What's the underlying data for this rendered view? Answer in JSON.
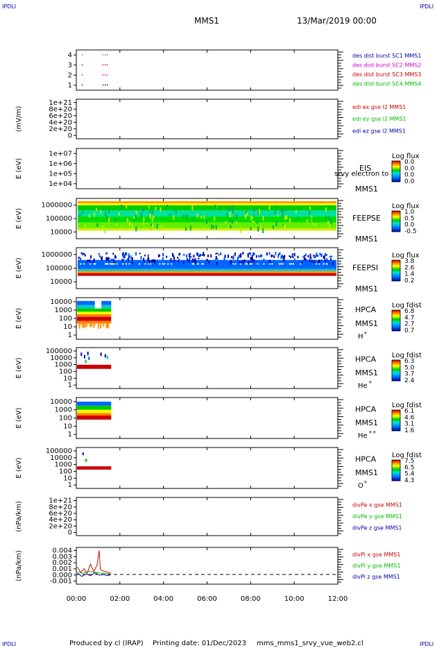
{
  "corner_marks": {
    "left": "IPDLI",
    "right": "IPDLI"
  },
  "header": {
    "mission": "MMS1",
    "date": "13/Mar/2019 00:00"
  },
  "footer": {
    "produced_by": "Produced by cl (IRAP)",
    "printing_date": "Printing date: 01/Dec/2023",
    "file": "mms_mms1_srvy_vue_web2.cl"
  },
  "time_axis": {
    "start_hours": 0,
    "end_hours": 12,
    "ticks": [
      "00:00",
      "02:00",
      "04:00",
      "06:00",
      "08:00",
      "10:00",
      "12:00"
    ]
  },
  "colors": {
    "mms1": "#0000aa",
    "mms2": "#cc00cc",
    "mms3": "#cc0000",
    "mms4": "#00bb00",
    "x": "#cc0000",
    "y": "#00bb00",
    "z": "#0000aa"
  },
  "chart_data": [
    {
      "type": "scatter",
      "id": "burst",
      "ylabel": "",
      "yticks": [
        "1",
        "2",
        "3",
        "4"
      ],
      "ylim": [
        0.5,
        4.5
      ],
      "legend": [
        {
          "label": "des dist burst SC1 MMS1",
          "color": "#0000aa"
        },
        {
          "label": "des dist burst SC2 MMS2",
          "color": "#cc00cc"
        },
        {
          "label": "des dist burst SC3 MMS3",
          "color": "#cc0000"
        },
        {
          "label": "des dist burst SC4 MMS4",
          "color": "#00bb00"
        }
      ],
      "series": [
        {
          "level": 1,
          "color": "#0000aa",
          "times": [
            0.25,
            1.2,
            1.3,
            1.4
          ]
        },
        {
          "level": 2,
          "color": "#cc00cc",
          "times": [
            0.25,
            1.2,
            1.3,
            1.4
          ]
        },
        {
          "level": 3,
          "color": "#cc0000",
          "times": [
            0.25,
            1.2,
            1.3,
            1.4
          ]
        },
        {
          "level": 4,
          "color": "#00bb00",
          "times": [
            0.25,
            1.2,
            1.3,
            1.4
          ]
        }
      ]
    },
    {
      "type": "line",
      "id": "edi",
      "ylabel": "(mV/m)",
      "yticks": [
        "0",
        "2e+20",
        "4e+20",
        "6e+20",
        "8e+20",
        "1e+21"
      ],
      "ylim": [
        0,
        1.05e+21
      ],
      "zero_line": true,
      "legend": [
        {
          "label": "edi ex gse l2 MMS1",
          "color": "#cc0000"
        },
        {
          "label": "edi ey gse l2 MMS1",
          "color": "#00bb00"
        },
        {
          "label": "edi ez gse l2 MMS1",
          "color": "#0000aa"
        }
      ]
    },
    {
      "type": "heatmap",
      "id": "eis",
      "ylabel": "E (eV)",
      "yticks": [
        "1e+04",
        "1e+05",
        "1e+06",
        "1e+07"
      ],
      "instrument": [
        "EIS",
        "MMS1"
      ],
      "overlap_text": "srvy electron to",
      "colorbar": {
        "title": "Log flux",
        "ticks": [
          "0.0",
          "0.0",
          "0.0",
          "0.0"
        ]
      }
    },
    {
      "type": "heatmap",
      "id": "feepse",
      "ylabel": "E (eV)",
      "yticks": [
        "10000",
        "100000",
        "1000000"
      ],
      "instrument": [
        "FEEPSE",
        "MMS1"
      ],
      "colorbar": {
        "title": "Log flux",
        "ticks": [
          "1.0",
          "0.5",
          "0.0",
          "-0.5"
        ]
      }
    },
    {
      "type": "heatmap",
      "id": "feepsi",
      "ylabel": "E (eV)",
      "yticks": [
        "10000",
        "100000",
        "1000000"
      ],
      "instrument": [
        "FEEPSI",
        "MMS1"
      ],
      "colorbar": {
        "title": "Log flux",
        "ticks": [
          "3.8",
          "2.6",
          "1.4",
          "0.2"
        ]
      }
    },
    {
      "type": "heatmap",
      "id": "hpca_h",
      "ylabel": "E (eV)",
      "yticks": [
        "1",
        "10",
        "100",
        "1000",
        "10000"
      ],
      "instrument": [
        "HPCA",
        "MMS1"
      ],
      "species": "H",
      "species_sup": "+",
      "colorbar": {
        "title": "Log fdist",
        "ticks": [
          "6.8",
          "4.7",
          "2.7",
          "0.7"
        ]
      }
    },
    {
      "type": "heatmap",
      "id": "hpca_he",
      "ylabel": "E (eV)",
      "yticks": [
        "1",
        "10",
        "100",
        "1000",
        "10000",
        "100000"
      ],
      "instrument": [
        "HPCA",
        "MMS1"
      ],
      "species": "He",
      "species_sup": "+",
      "colorbar": {
        "title": "Log fdist",
        "ticks": [
          "6.3",
          "5.0",
          "3.7",
          "2.4"
        ]
      }
    },
    {
      "type": "heatmap",
      "id": "hpca_hepp",
      "ylabel": "E (eV)",
      "yticks": [
        "1",
        "10",
        "100",
        "1000",
        "10000"
      ],
      "instrument": [
        "HPCA",
        "MMS1"
      ],
      "species": "He",
      "species_sup": "++",
      "colorbar": {
        "title": "Log fdist",
        "ticks": [
          "6.1",
          "4.6",
          "3.1",
          "1.6"
        ]
      }
    },
    {
      "type": "heatmap",
      "id": "hpca_o",
      "ylabel": "E (eV)",
      "yticks": [
        "1",
        "10",
        "100",
        "1000",
        "10000",
        "100000"
      ],
      "instrument": [
        "HPCA",
        "MMS1"
      ],
      "species": "O",
      "species_sup": "+",
      "colorbar": {
        "title": "Log fdist",
        "ticks": [
          "7.5",
          "6.5",
          "5.4",
          "4.3"
        ]
      }
    },
    {
      "type": "line",
      "id": "divpe",
      "ylabel": "(nPa/km)",
      "yticks": [
        "0",
        "2e+20",
        "4e+20",
        "6e+20",
        "8e+20",
        "1e+21"
      ],
      "ylim": [
        0,
        1.05e+21
      ],
      "zero_line": true,
      "legend": [
        {
          "label": "divPe x gse MMS1",
          "color": "#cc0000"
        },
        {
          "label": "divPe y gse MMS1",
          "color": "#00bb00"
        },
        {
          "label": "divPe z gse MMS1",
          "color": "#0000aa"
        }
      ]
    },
    {
      "type": "line",
      "id": "divpi",
      "ylabel": "(nPa/km)",
      "yticks": [
        "-0.001",
        "0.000",
        "0.001",
        "0.002",
        "0.003",
        "0.004"
      ],
      "ylim": [
        -0.0015,
        0.0042
      ],
      "zero_line": true,
      "legend": [
        {
          "label": "divPi x gse MMS1",
          "color": "#cc0000"
        },
        {
          "label": "divPi y gse MMS1",
          "color": "#00bb00"
        },
        {
          "label": "divPi z gse MMS1",
          "color": "#0000aa"
        }
      ],
      "series": [
        {
          "name": "x",
          "color": "#cc0000",
          "t": [
            0.05,
            0.2,
            0.35,
            0.5,
            0.65,
            0.8,
            0.95,
            1.05,
            1.1,
            1.2,
            1.35,
            1.5,
            1.58
          ],
          "v": [
            0.0012,
            0.0003,
            0.0009,
            0.0002,
            0.0016,
            0.0005,
            0.0014,
            0.0037,
            0.0008,
            0.0006,
            0.0004,
            0.0003,
            0.0002
          ]
        },
        {
          "name": "y",
          "color": "#00bb00",
          "t": [
            0.05,
            0.3,
            0.6,
            0.9,
            1.2,
            1.5,
            1.58
          ],
          "v": [
            0.0004,
            0.0002,
            0.0005,
            0.0003,
            0.0002,
            0.0001,
            0.0001
          ]
        },
        {
          "name": "z",
          "color": "#0000aa",
          "t": [
            0.05,
            0.25,
            0.45,
            0.65,
            0.85,
            1.05,
            1.25,
            1.45,
            1.58
          ],
          "v": [
            0.0002,
            -0.0003,
            0.0001,
            -0.0002,
            0.0003,
            -0.0001,
            0.0,
            -0.0002,
            0.0
          ]
        }
      ]
    }
  ]
}
